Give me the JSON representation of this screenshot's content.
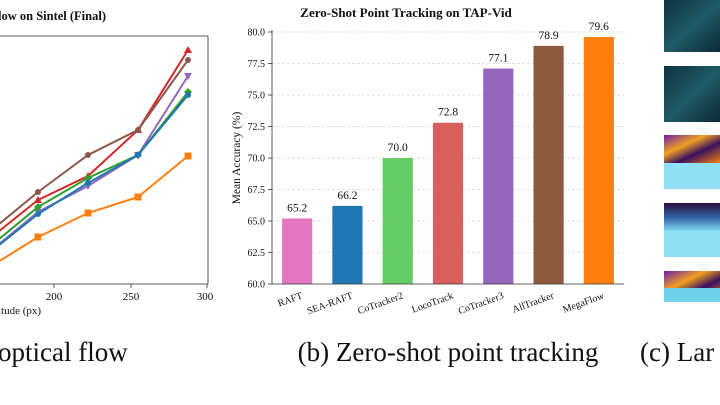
{
  "left_panel": {
    "title_fragment": "low on Sintel (Final)",
    "xlabel_fragment": "itude (px)",
    "x_ticks": [
      "200",
      "250",
      "300"
    ],
    "caption_fragment": "optical flow",
    "series_colors": [
      "#d62728",
      "#8c564b",
      "#9467bd",
      "#2ca02c",
      "#1f77b4",
      "#ff7f0e"
    ]
  },
  "chart_data": {
    "type": "bar",
    "title": "Zero-Shot Point Tracking on TAP-Vid",
    "ylabel": "Mean Accuracy (%)",
    "xlabel": "",
    "ylim": [
      60,
      80
    ],
    "yticks": [
      "60.0",
      "62.5",
      "65.0",
      "67.5",
      "70.0",
      "72.5",
      "75.0",
      "77.5",
      "80.0"
    ],
    "grid": true,
    "categories": [
      "RAFT",
      "SEA-RAFT",
      "CoTracker2",
      "LocoTrack",
      "CoTracker3",
      "AllTracker",
      "MegaFlow"
    ],
    "values": [
      65.2,
      66.2,
      70.0,
      72.8,
      77.1,
      78.9,
      79.6
    ],
    "value_labels": [
      "65.2",
      "66.2",
      "70.0",
      "72.8",
      "77.1",
      "78.9",
      "79.6"
    ],
    "colors": [
      "#e377c2",
      "#1f77b4",
      "#66cc66",
      "#d95f5f",
      "#9467bd",
      "#8c5a3c",
      "#ff7f0e"
    ]
  },
  "middle_caption": "(b) Zero-shot point tracking",
  "right_caption_fragment": "(c) Lar"
}
